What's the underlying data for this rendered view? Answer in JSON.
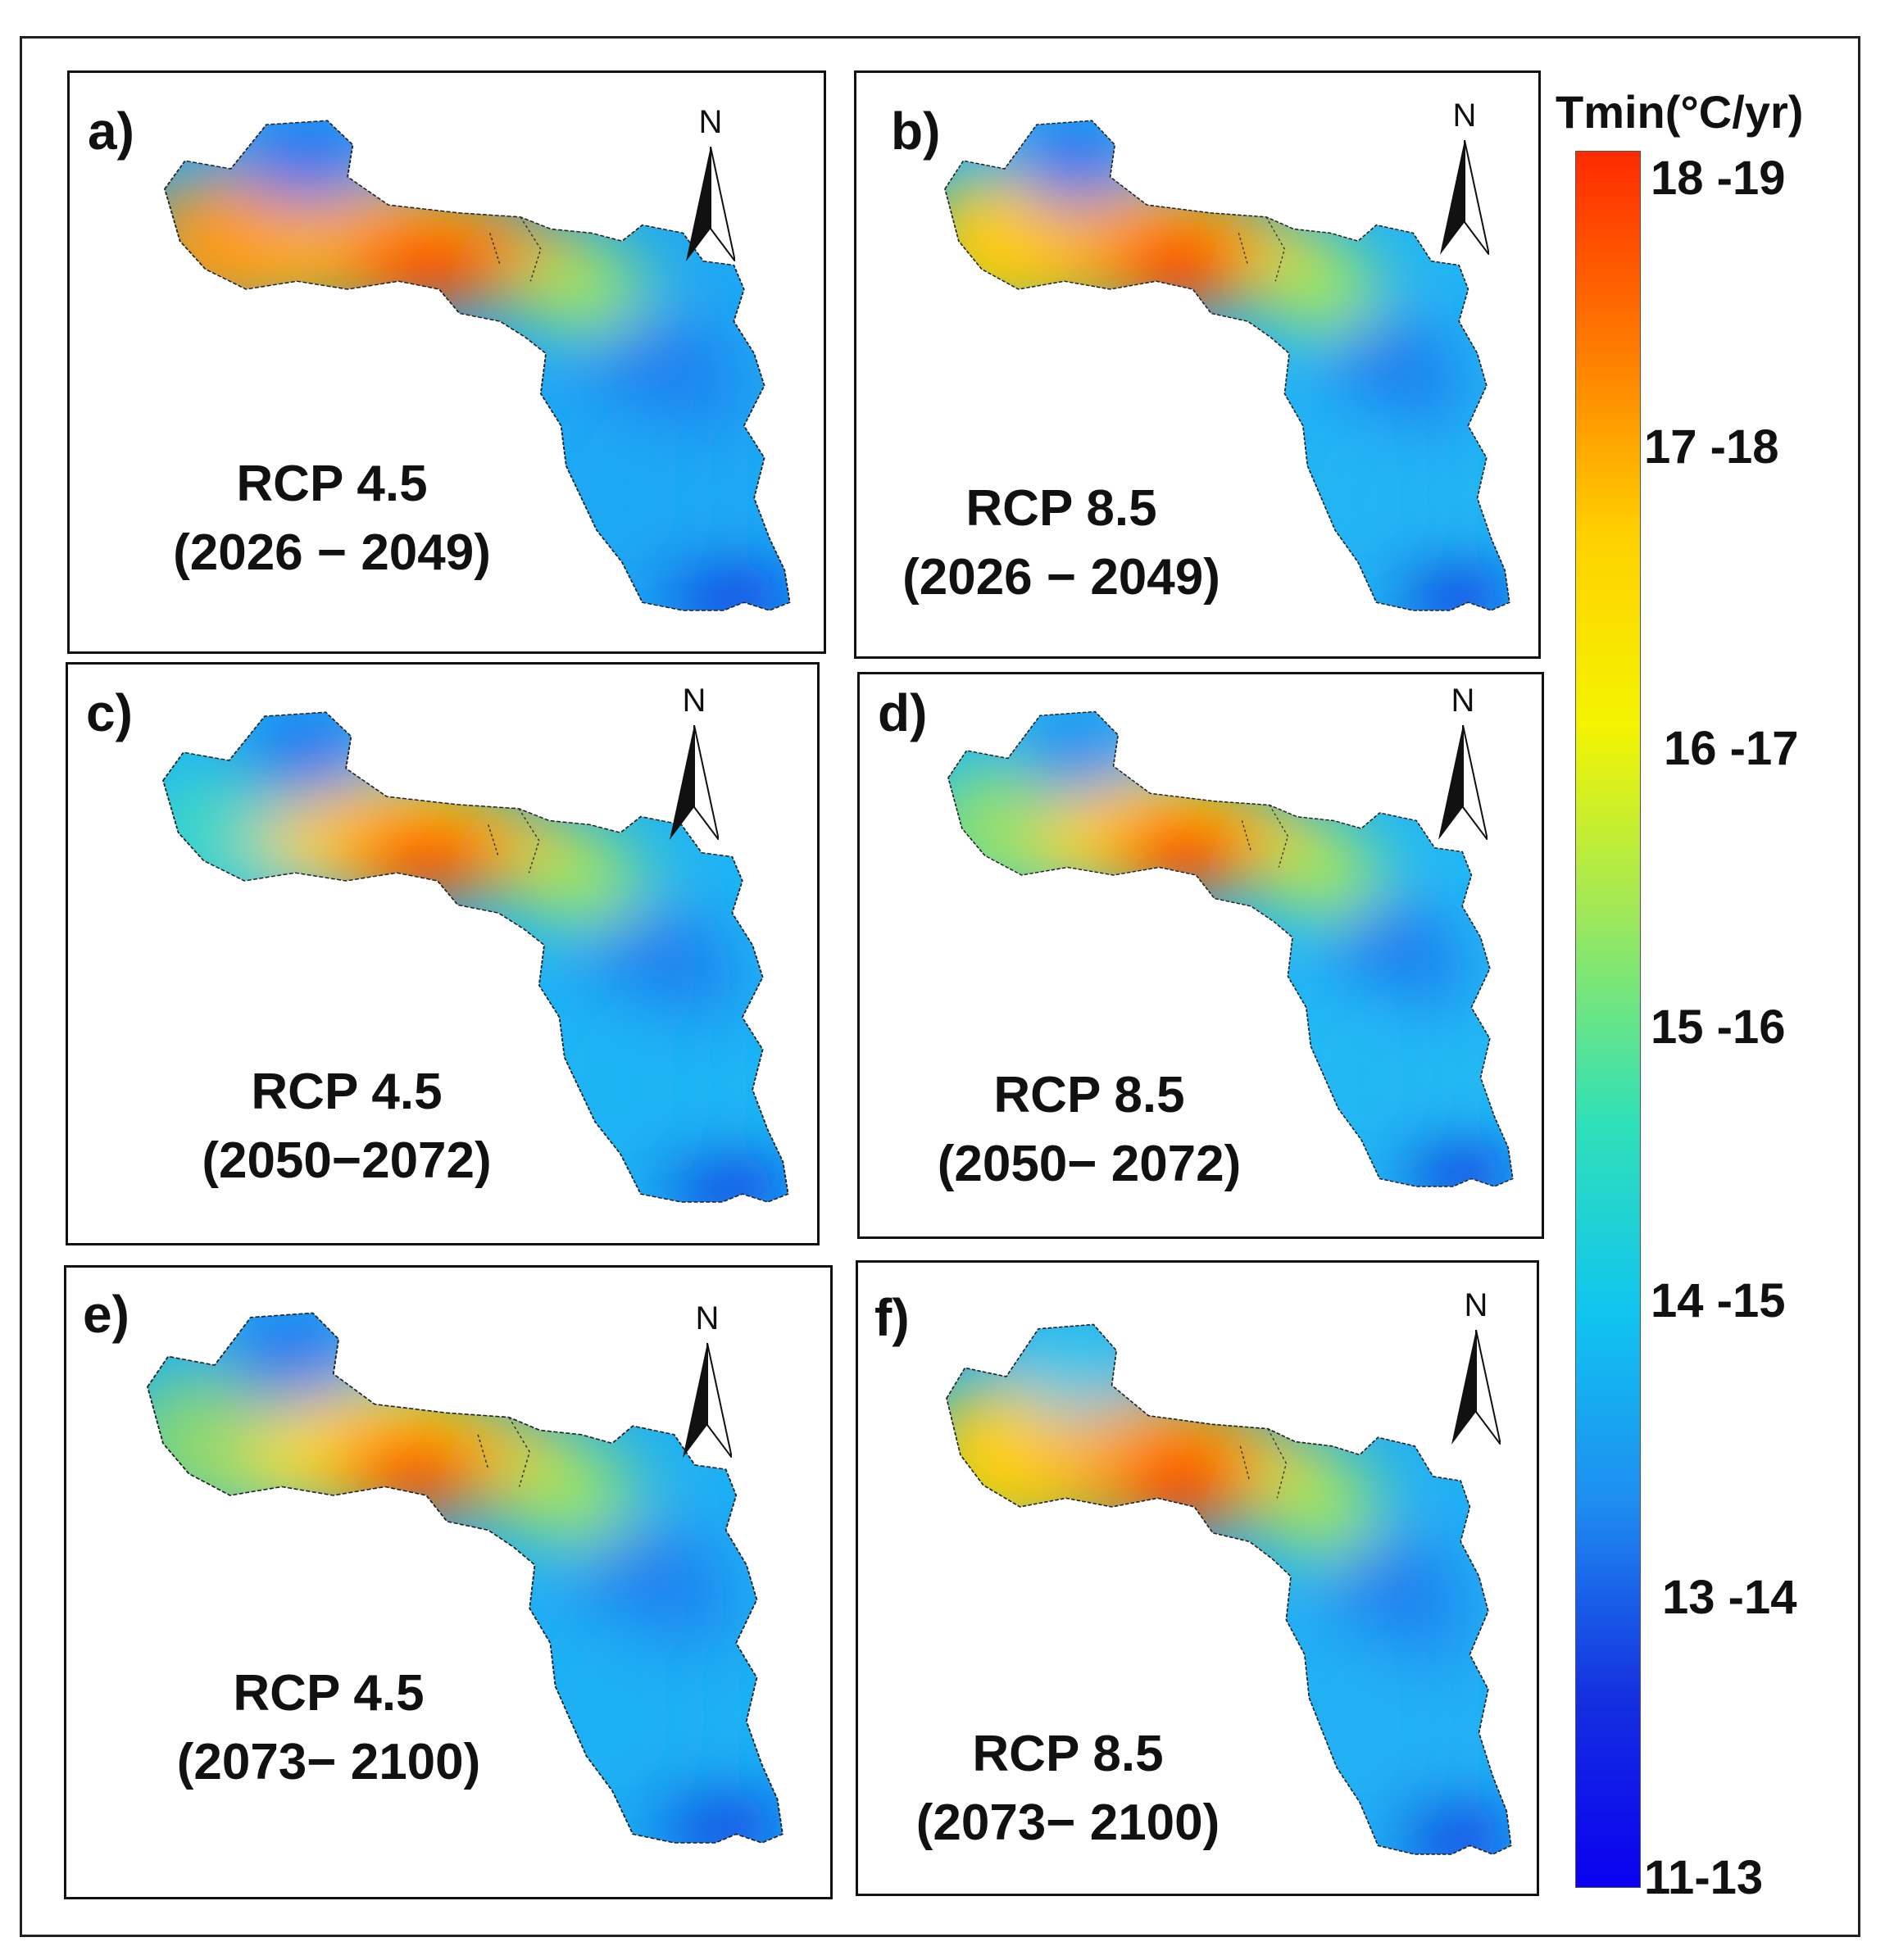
{
  "legend": {
    "title": "Tmin(°C/yr)",
    "ticks": [
      "18 -19",
      "17 -18",
      "16 -17",
      "15 -16",
      "14 -15",
      "13 -14",
      "11-13"
    ],
    "colors": [
      "#ff2a00",
      "#ff7800",
      "#ffd000",
      "#f4f400",
      "#9ee85a",
      "#2fe0b8",
      "#10c4f0",
      "#1e8cf0",
      "#1430e0",
      "#0a00f0"
    ]
  },
  "north_label": "N",
  "panels": [
    {
      "id": "a",
      "label": "a)",
      "scenario": "RCP 4.5",
      "period": "(2026 − 2049)"
    },
    {
      "id": "b",
      "label": "b)",
      "scenario": "RCP 8.5",
      "period": "(2026 − 2049)"
    },
    {
      "id": "c",
      "label": "c)",
      "scenario": "RCP 4.5",
      "period": "(2050−2072)"
    },
    {
      "id": "d",
      "label": "d)",
      "scenario": "RCP 8.5",
      "period": "(2050− 2072)"
    },
    {
      "id": "e",
      "label": "e)",
      "scenario": "RCP 4.5",
      "period": "(2073− 2100)"
    },
    {
      "id": "f",
      "label": "f)",
      "scenario": "RCP 8.5",
      "period": "(2073− 2100)"
    }
  ]
}
